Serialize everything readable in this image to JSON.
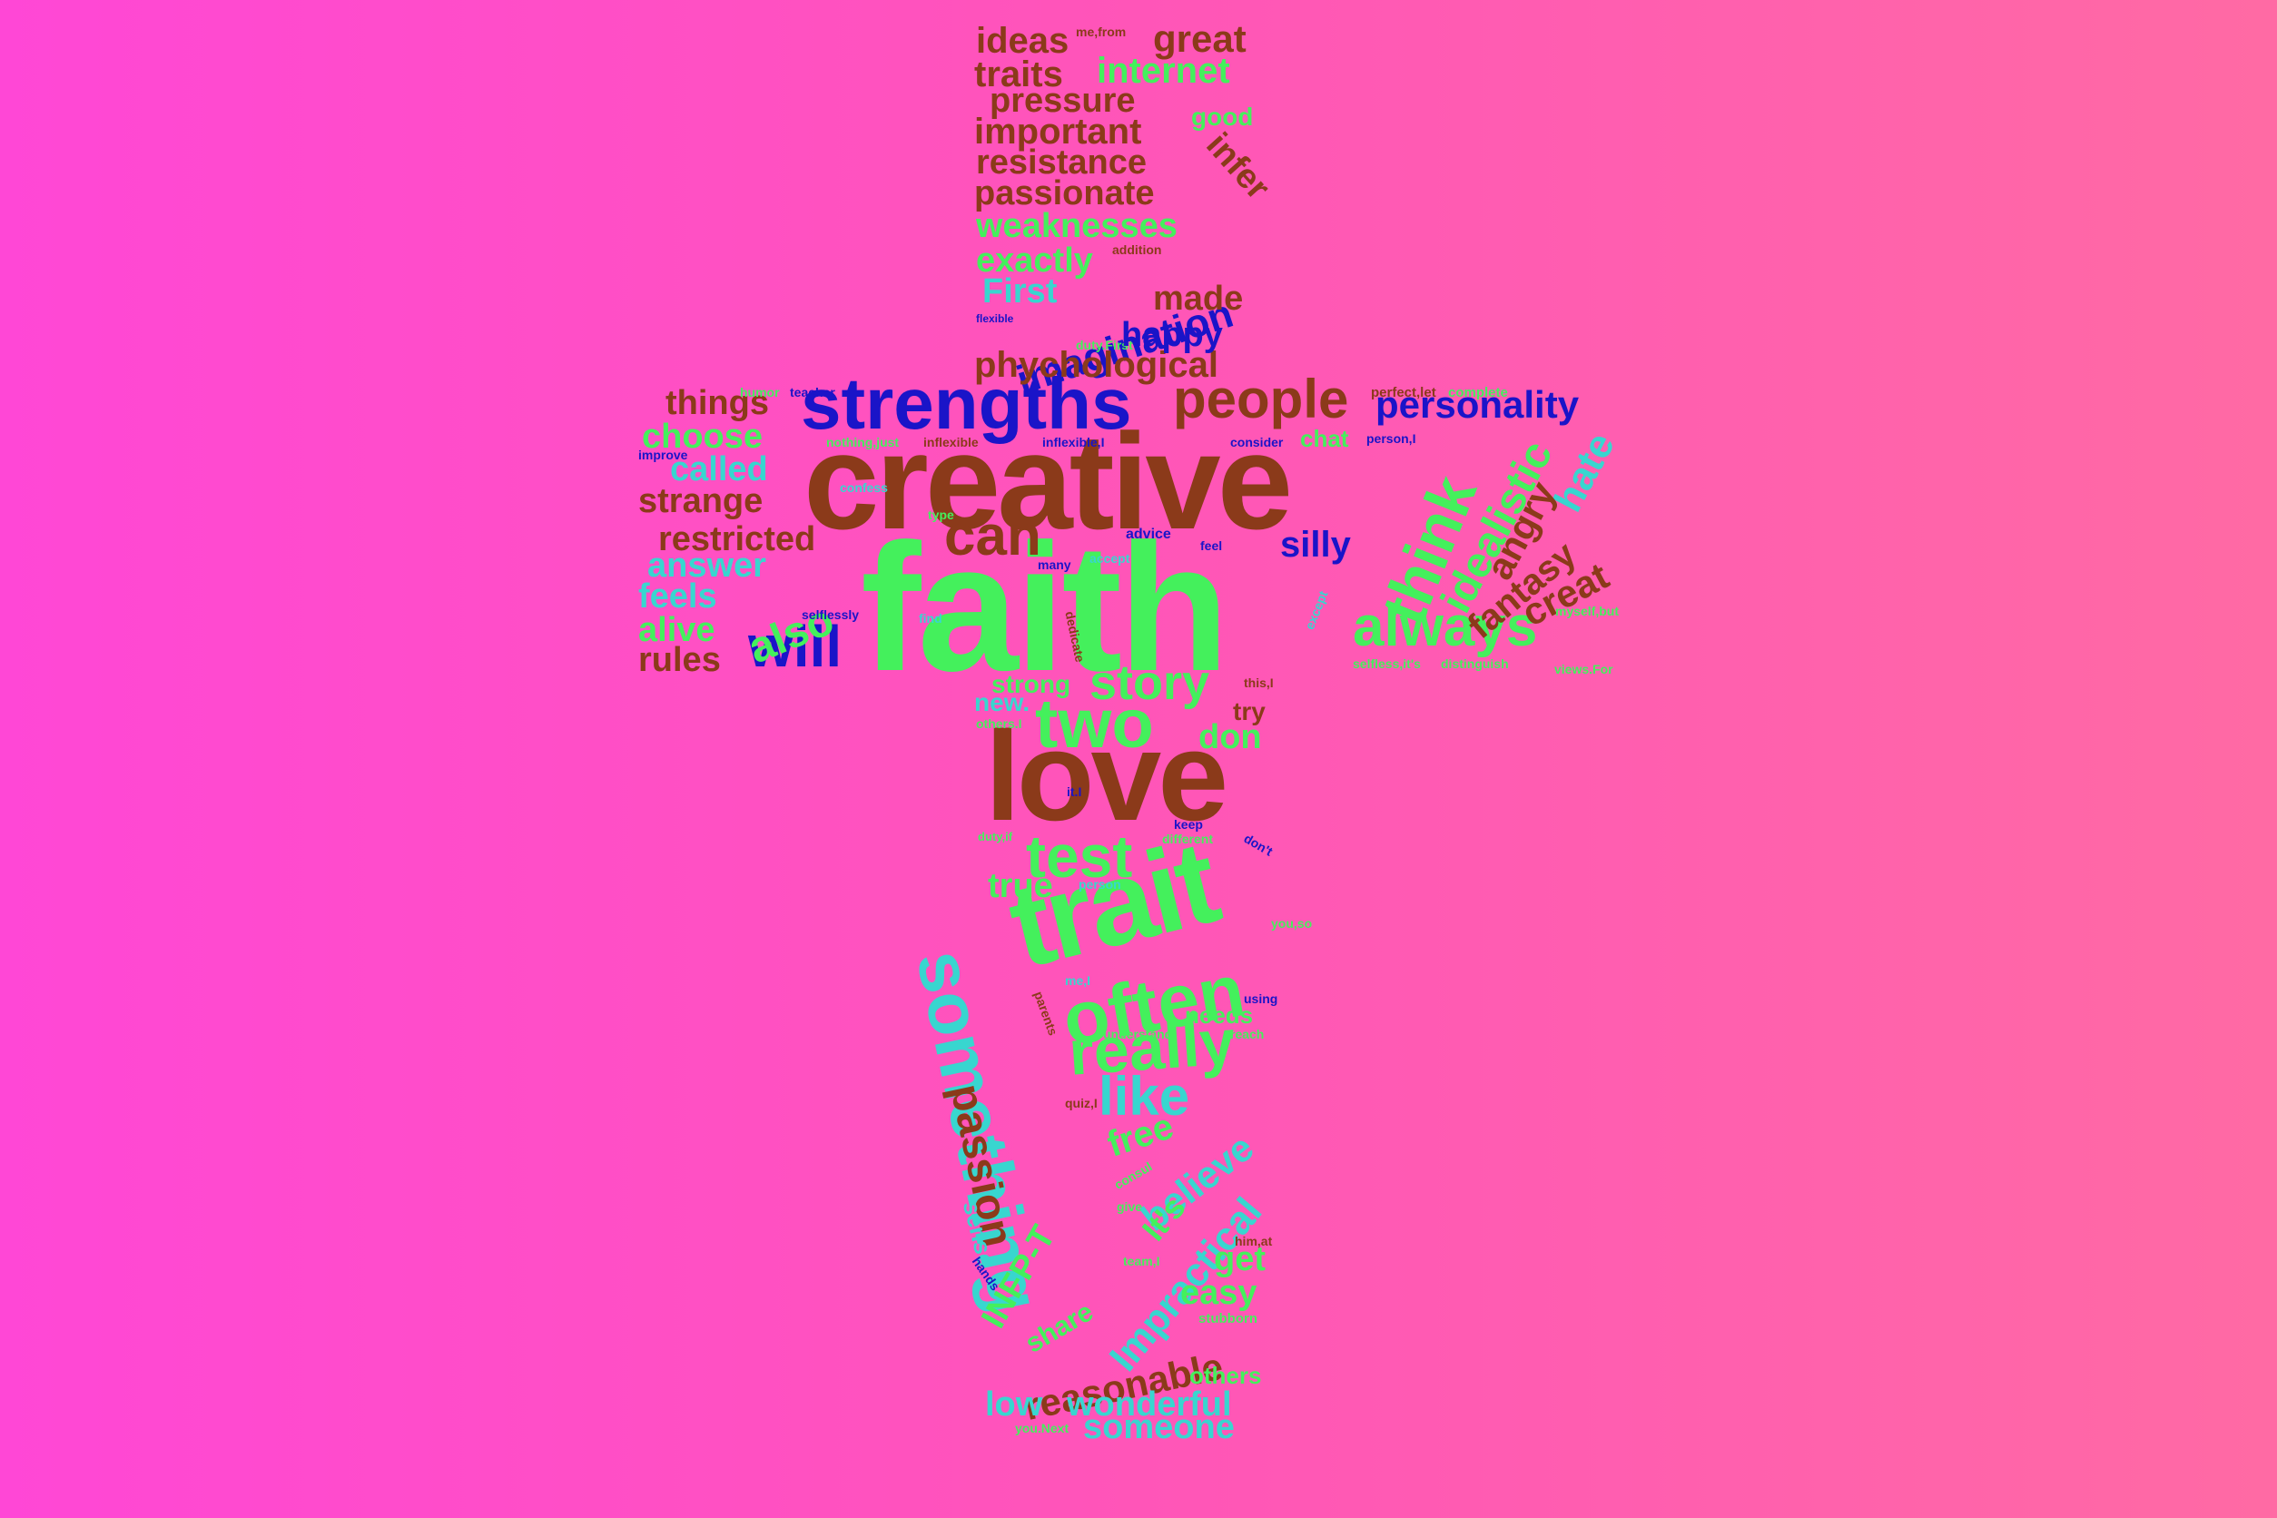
{
  "colors": {
    "brown": "#8b3a1a",
    "green": "#44f05c",
    "blue": "#1a14c8",
    "cyan": "#38d6cf",
    "background_left": "#ff47d6",
    "background_right": "#ff6aa4"
  },
  "words": [
    {
      "text": "faith",
      "color": "green"
    },
    {
      "text": "creative",
      "color": "brown"
    },
    {
      "text": "love",
      "color": "brown"
    },
    {
      "text": "trait",
      "color": "green"
    },
    {
      "text": "strengths",
      "color": "blue"
    },
    {
      "text": "something",
      "color": "cyan"
    },
    {
      "text": "often",
      "color": "green"
    },
    {
      "text": "really",
      "color": "green"
    },
    {
      "text": "two",
      "color": "green"
    },
    {
      "text": "think",
      "color": "green"
    },
    {
      "text": "always",
      "color": "green"
    },
    {
      "text": "people",
      "color": "brown"
    },
    {
      "text": "will",
      "color": "blue"
    },
    {
      "text": "can",
      "color": "brown"
    },
    {
      "text": "test",
      "color": "green"
    },
    {
      "text": "like",
      "color": "cyan"
    },
    {
      "text": "personality",
      "color": "blue"
    },
    {
      "text": "story",
      "color": "green"
    },
    {
      "text": "imagination",
      "color": "blue"
    },
    {
      "text": "phychological",
      "color": "brown"
    },
    {
      "text": "passion",
      "color": "brown"
    },
    {
      "text": "Impractical",
      "color": "cyan"
    },
    {
      "text": "reasonable",
      "color": "brown"
    },
    {
      "text": "idealistic",
      "color": "green"
    },
    {
      "text": "also",
      "color": "green"
    },
    {
      "text": "believe",
      "color": "cyan"
    },
    {
      "text": "ideas",
      "color": "brown"
    },
    {
      "text": "great",
      "color": "brown"
    },
    {
      "text": "traits",
      "color": "brown"
    },
    {
      "text": "internet",
      "color": "green"
    },
    {
      "text": "pressure",
      "color": "brown"
    },
    {
      "text": "important",
      "color": "brown"
    },
    {
      "text": "good",
      "color": "green"
    },
    {
      "text": "resistance",
      "color": "brown"
    },
    {
      "text": "infer",
      "color": "brown"
    },
    {
      "text": "passionate",
      "color": "brown"
    },
    {
      "text": "weaknesses",
      "color": "green"
    },
    {
      "text": "addition",
      "color": "brown"
    },
    {
      "text": "exactly",
      "color": "green"
    },
    {
      "text": "First",
      "color": "cyan"
    },
    {
      "text": "made",
      "color": "brown"
    },
    {
      "text": "flexible",
      "color": "blue"
    },
    {
      "text": "duty.First",
      "color": "green"
    },
    {
      "text": "happy",
      "color": "blue"
    },
    {
      "text": "things",
      "color": "brown"
    },
    {
      "text": "choose",
      "color": "green"
    },
    {
      "text": "called",
      "color": "cyan"
    },
    {
      "text": "strange",
      "color": "brown"
    },
    {
      "text": "restricted",
      "color": "brown"
    },
    {
      "text": "answer",
      "color": "cyan"
    },
    {
      "text": "feels",
      "color": "cyan"
    },
    {
      "text": "alive",
      "color": "green"
    },
    {
      "text": "rules",
      "color": "brown"
    },
    {
      "text": "improve",
      "color": "blue"
    },
    {
      "text": "humor",
      "color": "green"
    },
    {
      "text": "teacher",
      "color": "blue"
    },
    {
      "text": "nothing,just",
      "color": "green"
    },
    {
      "text": "inflexible",
      "color": "brown"
    },
    {
      "text": "inflexible,I",
      "color": "blue"
    },
    {
      "text": "consider",
      "color": "blue"
    },
    {
      "text": "chat",
      "color": "green"
    },
    {
      "text": "perfect,let",
      "color": "brown"
    },
    {
      "text": "complete",
      "color": "green"
    },
    {
      "text": "person,I",
      "color": "blue"
    },
    {
      "text": "hate",
      "color": "cyan"
    },
    {
      "text": "angry",
      "color": "brown"
    },
    {
      "text": "fantasy",
      "color": "brown"
    },
    {
      "text": "creat",
      "color": "brown"
    },
    {
      "text": "silly",
      "color": "blue"
    },
    {
      "text": "advice",
      "color": "blue"
    },
    {
      "text": "feel",
      "color": "blue"
    },
    {
      "text": "many",
      "color": "blue"
    },
    {
      "text": "accept",
      "color": "cyan"
    },
    {
      "text": "type",
      "color": "green"
    },
    {
      "text": "confess",
      "color": "cyan"
    },
    {
      "text": "selflessly",
      "color": "blue"
    },
    {
      "text": "find",
      "color": "cyan"
    },
    {
      "text": "dedicate",
      "color": "brown"
    },
    {
      "text": "myself,but",
      "color": "green"
    },
    {
      "text": "selfless,it's",
      "color": "green"
    },
    {
      "text": "distinguish",
      "color": "green"
    },
    {
      "text": "views.For",
      "color": "green"
    },
    {
      "text": "except",
      "color": "cyan"
    },
    {
      "text": "strong",
      "color": "green"
    },
    {
      "text": "new.",
      "color": "cyan"
    },
    {
      "text": "others.I",
      "color": "green"
    },
    {
      "text": "this,I",
      "color": "brown"
    },
    {
      "text": "try",
      "color": "brown"
    },
    {
      "text": "don",
      "color": "green"
    },
    {
      "text": "it.I",
      "color": "blue"
    },
    {
      "text": "duty,if",
      "color": "green"
    },
    {
      "text": "keep",
      "color": "blue"
    },
    {
      "text": "different",
      "color": "green"
    },
    {
      "text": "don't",
      "color": "blue"
    },
    {
      "text": "true",
      "color": "green"
    },
    {
      "text": "person",
      "color": "cyan"
    },
    {
      "text": "you,so",
      "color": "green"
    },
    {
      "text": "me,I",
      "color": "cyan"
    },
    {
      "text": "using",
      "color": "blue"
    },
    {
      "text": "needs",
      "color": "green"
    },
    {
      "text": "understand",
      "color": "green"
    },
    {
      "text": "reach",
      "color": "green"
    },
    {
      "text": "parents",
      "color": "brown"
    },
    {
      "text": "quiz,I",
      "color": "brown"
    },
    {
      "text": "free",
      "color": "green"
    },
    {
      "text": "consul",
      "color": "green"
    },
    {
      "text": "give",
      "color": "green"
    },
    {
      "text": "It's",
      "color": "green"
    },
    {
      "text": "sense",
      "color": "cyan"
    },
    {
      "text": "INFP-T",
      "color": "green"
    },
    {
      "text": "hands",
      "color": "blue"
    },
    {
      "text": "team,I",
      "color": "green"
    },
    {
      "text": "get",
      "color": "green"
    },
    {
      "text": "him,at",
      "color": "brown"
    },
    {
      "text": "easy",
      "color": "green"
    },
    {
      "text": "stubborn",
      "color": "green"
    },
    {
      "text": "share",
      "color": "green"
    },
    {
      "text": "others",
      "color": "green"
    },
    {
      "text": "low",
      "color": "cyan"
    },
    {
      "text": "wonderful",
      "color": "cyan"
    },
    {
      "text": "someone",
      "color": "cyan"
    },
    {
      "text": "you.Next",
      "color": "green"
    },
    {
      "text": "me,from",
      "color": "brown"
    }
  ]
}
